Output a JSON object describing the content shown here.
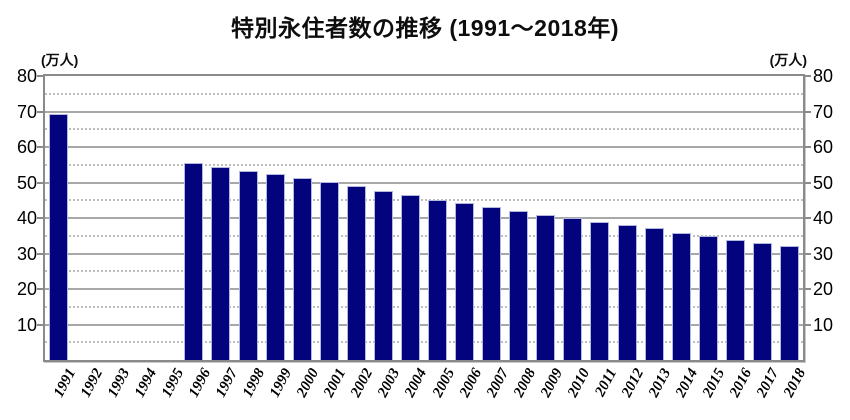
{
  "title": "特別永住者数の推移 (1991〜2018年)",
  "y_axis_unit_left": "(万人)",
  "y_axis_unit_right": "(万人)",
  "chart_data": {
    "type": "bar",
    "title": "特別永住者数の推移 (1991〜2018年)",
    "xlabel": "",
    "ylabel": "(万人)",
    "unit": "万人",
    "categories": [
      "1991",
      "1992",
      "1993",
      "1994",
      "1995",
      "1996",
      "1997",
      "1998",
      "1999",
      "2000",
      "2001",
      "2002",
      "2003",
      "2004",
      "2005",
      "2006",
      "2007",
      "2008",
      "2009",
      "2010",
      "2011",
      "2012",
      "2013",
      "2014",
      "2015",
      "2016",
      "2017",
      "2018"
    ],
    "values": [
      69.3,
      null,
      null,
      null,
      null,
      55.5,
      54.3,
      53.3,
      52.3,
      51.2,
      50.1,
      48.9,
      47.7,
      46.6,
      45.2,
      44.1,
      43.0,
      42.0,
      40.9,
      39.9,
      38.9,
      38.1,
      37.3,
      35.8,
      34.9,
      33.9,
      33.0,
      32.1
    ],
    "ylim": [
      0,
      80
    ],
    "yticks": [
      10,
      20,
      30,
      40,
      50,
      60,
      70,
      80
    ],
    "minor_tick_interval": 5,
    "grid": true,
    "dual_axis_labels": true,
    "legend_position": "none",
    "bar_color": "#03037e",
    "bar_edge_color": "#b3b8de",
    "grid_major_color": "#a8a8a8",
    "grid_minor_color": "#bdbdbd",
    "frame_color": "#8a8a8a"
  }
}
